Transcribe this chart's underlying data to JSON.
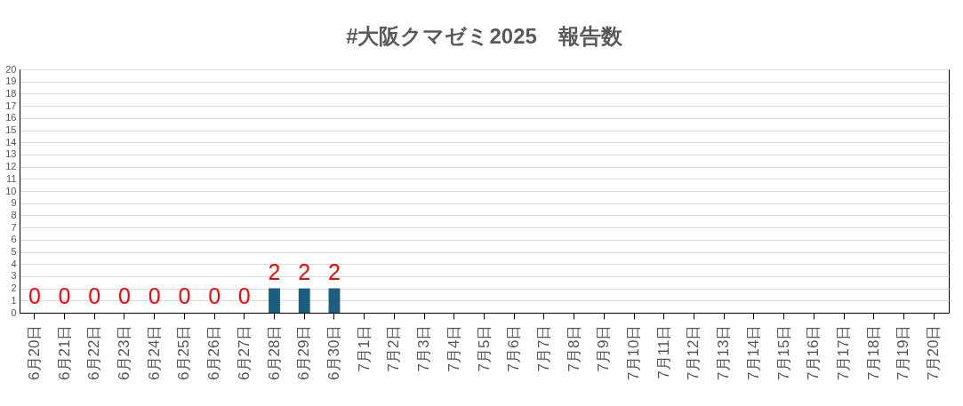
{
  "chart_data": {
    "type": "bar",
    "title": "#大阪クマゼミ2025　報告数",
    "categories": [
      "6月20日",
      "6月21日",
      "6月22日",
      "6月23日",
      "6月24日",
      "6月25日",
      "6月26日",
      "6月27日",
      "6月28日",
      "6月29日",
      "6月30日",
      "7月1日",
      "7月2日",
      "7月3日",
      "7月4日",
      "7月5日",
      "7月6日",
      "7月7日",
      "7月8日",
      "7月9日",
      "7月10日",
      "7月11日",
      "7月12日",
      "7月13日",
      "7月14日",
      "7月15日",
      "7月16日",
      "7月17日",
      "7月18日",
      "7月19日",
      "7月20日"
    ],
    "values": [
      0,
      0,
      0,
      0,
      0,
      0,
      0,
      0,
      2,
      2,
      2,
      null,
      null,
      null,
      null,
      null,
      null,
      null,
      null,
      null,
      null,
      null,
      null,
      null,
      null,
      null,
      null,
      null,
      null,
      null,
      null
    ],
    "value_labels": [
      "0",
      "0",
      "0",
      "0",
      "0",
      "0",
      "0",
      "0",
      "2",
      "2",
      "2",
      null,
      null,
      null,
      null,
      null,
      null,
      null,
      null,
      null,
      null,
      null,
      null,
      null,
      null,
      null,
      null,
      null,
      null,
      null,
      null
    ],
    "color": "#1a5e80",
    "ylim": [
      0,
      20
    ],
    "yticks": [
      0,
      1,
      2,
      3,
      4,
      5,
      6,
      7,
      8,
      9,
      10,
      11,
      12,
      13,
      14,
      15,
      16,
      17,
      18,
      19,
      20
    ],
    "grid": "y"
  }
}
